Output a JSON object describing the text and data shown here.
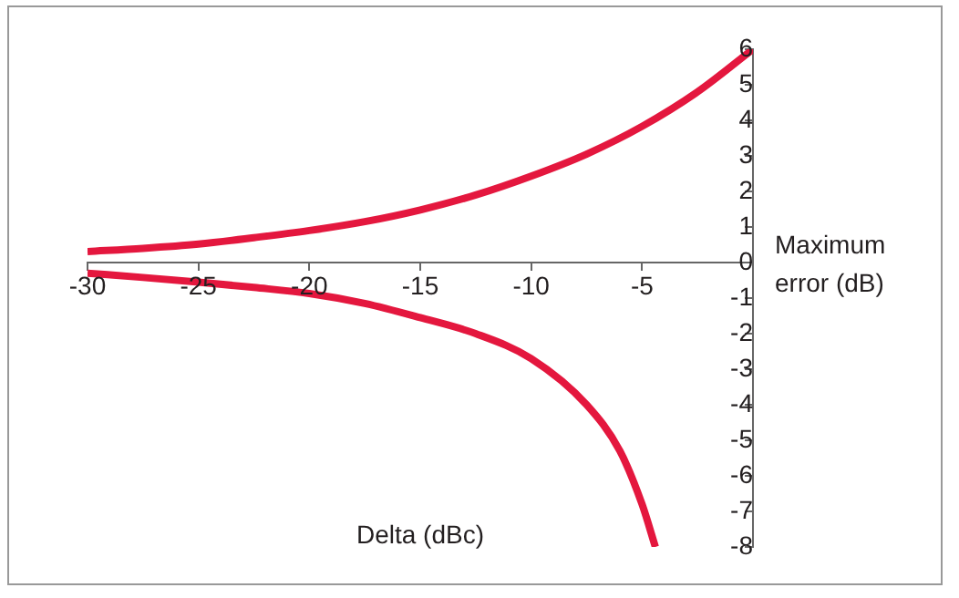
{
  "chart_data": {
    "type": "line",
    "xlabel": "Delta (dBc)",
    "ylabel": "Maximum error (dB)",
    "xlim": [
      -30,
      0
    ],
    "xticks": [
      -30,
      -25,
      -20,
      -15,
      -10,
      -5
    ],
    "ylim": [
      -8,
      6
    ],
    "yticks": [
      -8,
      -7,
      -6,
      -5,
      -4,
      -3,
      -2,
      -1,
      0,
      1,
      2,
      3,
      4,
      5,
      6
    ],
    "grid": false,
    "legend": false,
    "marker": "none",
    "line_style": "solid",
    "series": [
      {
        "color": "#e4173e",
        "x": [
          -30,
          -27.5,
          -25,
          -22.5,
          -20,
          -17.5,
          -15,
          -12.5,
          -10,
          -7.5,
          -5,
          -2.5,
          0
        ],
        "values": [
          0.31,
          0.4,
          0.52,
          0.7,
          0.9,
          1.15,
          1.48,
          1.9,
          2.43,
          3.05,
          3.83,
          4.8,
          6
        ]
      },
      {
        "color": "#e4173e",
        "x": [
          -30,
          -27.5,
          -25,
          -22.5,
          -20,
          -17.5,
          -15,
          -12.5,
          -10,
          -7.5,
          -6,
          -5,
          -4.4
        ],
        "values": [
          -0.3,
          -0.42,
          -0.55,
          -0.7,
          -0.87,
          -1.15,
          -1.55,
          -2,
          -2.7,
          -4,
          -5.3,
          -6.8,
          -8
        ]
      }
    ]
  }
}
